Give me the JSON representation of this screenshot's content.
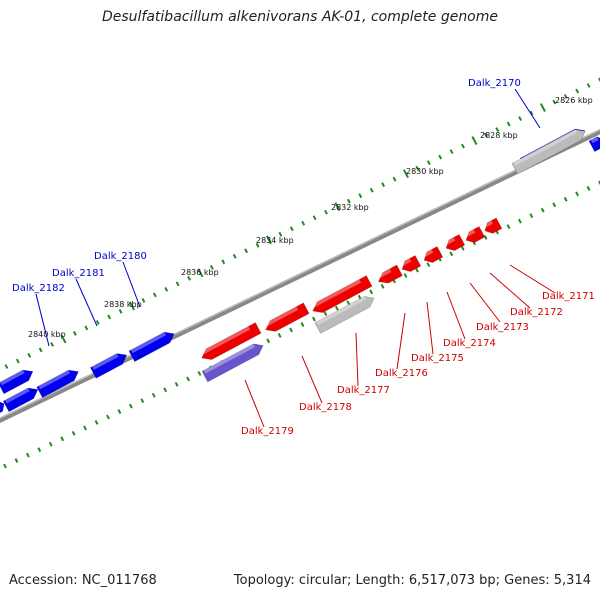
{
  "title": "Desulfatibacillum alkenivorans AK-01, complete genome",
  "footer": {
    "accession": "Accession: NC_011768",
    "summary": "Topology: circular; Length: 6,517,073 bp; Genes: 5,314"
  },
  "colors": {
    "plus_strand": "#0000ee",
    "minus_strand": "#ee0000",
    "highlight_plus": "#6655cc",
    "pseudo": "#bbbbbb",
    "axis": "#888888",
    "tick": "#228822",
    "label_plus": "#0000cc",
    "label_minus": "#cc0000"
  },
  "scale_labels": [
    "2826 kbp",
    "2828 kbp",
    "2830 kbp",
    "2832 kbp",
    "2834 kbp",
    "2836 kbp",
    "2838 kbp",
    "2840 kbp"
  ],
  "gene_labels": [
    {
      "name": "Dalk_2170",
      "strand": "plus"
    },
    {
      "name": "Dalk_2180",
      "strand": "plus"
    },
    {
      "name": "Dalk_2181",
      "strand": "plus"
    },
    {
      "name": "Dalk_2182",
      "strand": "plus"
    },
    {
      "name": "Dalk_2171",
      "strand": "minus"
    },
    {
      "name": "Dalk_2172",
      "strand": "minus"
    },
    {
      "name": "Dalk_2173",
      "strand": "minus"
    },
    {
      "name": "Dalk_2174",
      "strand": "minus"
    },
    {
      "name": "Dalk_2175",
      "strand": "minus"
    },
    {
      "name": "Dalk_2176",
      "strand": "minus"
    },
    {
      "name": "Dalk_2177",
      "strand": "minus"
    },
    {
      "name": "Dalk_2178",
      "strand": "minus"
    },
    {
      "name": "Dalk_2179",
      "strand": "minus"
    }
  ]
}
